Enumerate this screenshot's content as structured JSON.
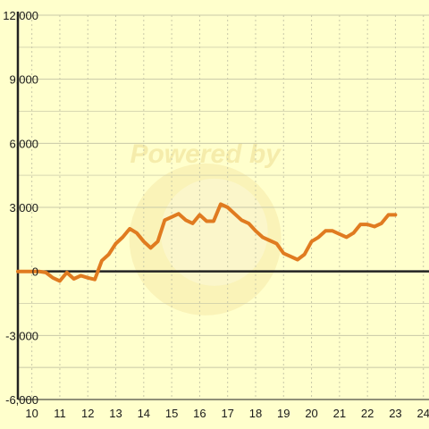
{
  "chart_data": {
    "type": "line",
    "title": "",
    "xlabel": "",
    "ylabel": "",
    "xlim": [
      9.5,
      24.2
    ],
    "ylim": [
      -6000,
      12000
    ],
    "x_ticks": [
      10,
      11,
      12,
      13,
      14,
      15,
      16,
      17,
      18,
      19,
      20,
      21,
      22,
      23,
      24
    ],
    "y_ticks": [
      -6000,
      -3000,
      0,
      3000,
      6000,
      9000,
      12000
    ],
    "x_tick_labels": [
      "10",
      "11",
      "12",
      "13",
      "14",
      "15",
      "16",
      "17",
      "18",
      "19",
      "20",
      "21",
      "22",
      "23",
      "24"
    ],
    "y_tick_labels": [
      "-6,000",
      "-3,000",
      "0",
      "3,000",
      "6,000",
      "9,000",
      "12,000"
    ],
    "grid": true,
    "legend": "none",
    "watermark": "Powered by",
    "colors": {
      "background": "#ffffcc",
      "series": "#e07b20",
      "grid": "#c8c8a8",
      "axis": "#222222",
      "watermark": "#f5e9a8"
    },
    "series": [
      {
        "x": [
          9.5,
          9.75,
          10.0,
          10.25,
          10.5,
          10.75,
          11.0,
          11.25,
          11.5,
          11.75,
          12.0,
          12.25,
          12.5,
          12.75,
          13.0,
          13.25,
          13.5,
          13.75,
          14.0,
          14.25,
          14.5,
          14.75,
          15.0,
          15.25,
          15.5,
          15.75,
          16.0,
          16.25,
          16.5,
          16.75,
          17.0,
          17.25,
          17.5,
          17.75,
          18.0,
          18.25,
          18.5,
          18.75,
          19.0,
          19.25,
          19.5,
          19.75,
          20.0,
          20.25,
          20.5,
          20.75,
          21.0,
          21.25,
          21.5,
          21.75,
          22.0,
          22.25,
          22.5,
          22.75,
          23.0
        ],
        "values": [
          0,
          0,
          0,
          0,
          -50,
          -300,
          -450,
          -50,
          -350,
          -200,
          -300,
          -380,
          500,
          800,
          1300,
          1600,
          2000,
          1800,
          1400,
          1100,
          1400,
          2400,
          2550,
          2700,
          2400,
          2250,
          2650,
          2350,
          2350,
          3150,
          3000,
          2700,
          2400,
          2250,
          1900,
          1600,
          1450,
          1300,
          850,
          700,
          550,
          800,
          1400,
          1600,
          1900,
          1900,
          1750,
          1600,
          1800,
          2200,
          2200,
          2100,
          2250,
          2650,
          2650
        ]
      }
    ]
  }
}
